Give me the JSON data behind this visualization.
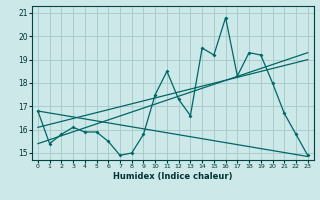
{
  "xlabel": "Humidex (Indice chaleur)",
  "bg_color": "#cce8e8",
  "grid_color": "#aacccc",
  "line_color": "#006666",
  "x_data": [
    0,
    1,
    2,
    3,
    4,
    5,
    6,
    7,
    8,
    9,
    10,
    11,
    12,
    13,
    14,
    15,
    16,
    17,
    18,
    19,
    20,
    21,
    22,
    23
  ],
  "series1": [
    16.8,
    15.4,
    15.8,
    16.1,
    15.9,
    15.9,
    15.5,
    14.9,
    15.0,
    15.8,
    17.5,
    18.5,
    17.3,
    16.6,
    19.5,
    19.2,
    20.8,
    18.3,
    19.3,
    19.2,
    18.0,
    16.7,
    15.8,
    14.9
  ],
  "xlim": [
    -0.5,
    23.5
  ],
  "ylim": [
    14.7,
    21.3
  ],
  "yticks": [
    15,
    16,
    17,
    18,
    19,
    20,
    21
  ],
  "xticks": [
    0,
    1,
    2,
    3,
    4,
    5,
    6,
    7,
    8,
    9,
    10,
    11,
    12,
    13,
    14,
    15,
    16,
    17,
    18,
    19,
    20,
    21,
    22,
    23
  ],
  "line2_x": [
    0,
    23
  ],
  "line2_y": [
    16.8,
    14.85
  ],
  "line3_x": [
    0,
    23
  ],
  "line3_y": [
    15.4,
    19.3
  ],
  "line4_x": [
    0,
    23
  ],
  "line4_y": [
    16.1,
    19.0
  ]
}
